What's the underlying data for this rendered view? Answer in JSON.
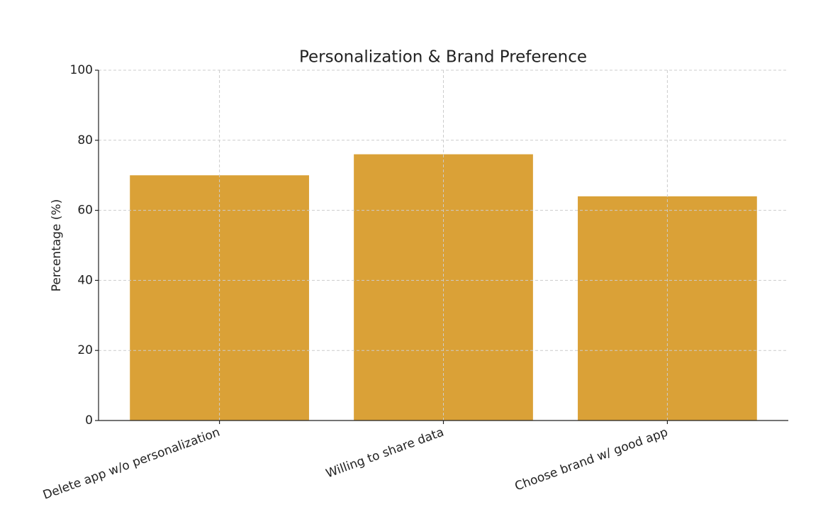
{
  "chart_data": {
    "type": "bar",
    "title": "Personalization & Brand Preference",
    "y_label": "Percentage (%)",
    "categories": [
      "Delete app w/o personalization",
      "Willing to share data",
      "Choose brand w/ good app"
    ],
    "values": [
      70,
      76,
      64
    ],
    "color": "#daa137",
    "ylim": [
      0,
      100
    ],
    "yticks": [
      0,
      20,
      40,
      60,
      80,
      100
    ],
    "grid": true
  }
}
